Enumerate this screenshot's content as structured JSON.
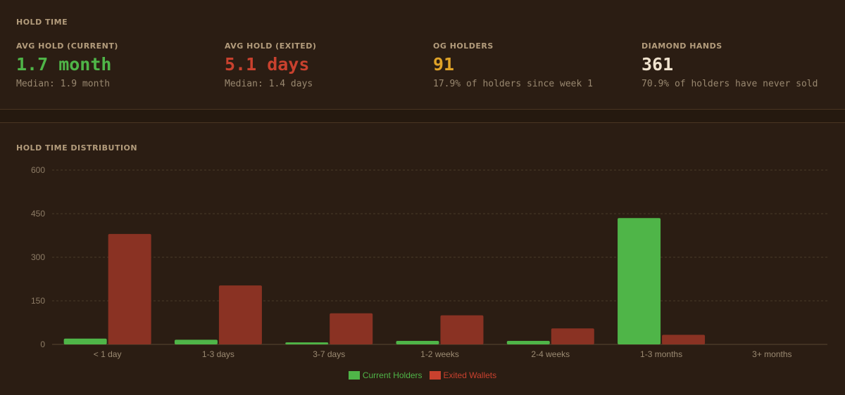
{
  "hold_time": {
    "title": "HOLD TIME",
    "stats": [
      {
        "label": "AVG HOLD (CURRENT)",
        "value": "1.7 month",
        "sub": "Median: 1.9 month",
        "color": "#4fb548"
      },
      {
        "label": "AVG HOLD (EXITED)",
        "value": "5.1 days",
        "sub": "Median: 1.4 days",
        "color": "#c9412e"
      },
      {
        "label": "OG HOLDERS",
        "value": "91",
        "sub": "17.9% of holders since week 1",
        "color": "#e0a328"
      },
      {
        "label": "DIAMOND HANDS",
        "value": "361",
        "sub": "70.9% of holders have never sold",
        "color": "#efe2ce"
      }
    ]
  },
  "distribution": {
    "title": "HOLD TIME DISTRIBUTION"
  },
  "colors": {
    "current": "#4fb548",
    "exited": "#8a3223",
    "exited_legend": "#c9412e",
    "grid": "#4a3a2a",
    "background": "#2b1d13"
  },
  "chart_data": {
    "type": "bar",
    "title": "HOLD TIME DISTRIBUTION",
    "categories": [
      "< 1 day",
      "1-3 days",
      "3-7 days",
      "1-2 weeks",
      "2-4 weeks",
      "1-3 months",
      "3+ months"
    ],
    "series": [
      {
        "name": "Current Holders",
        "values": [
          20,
          16,
          7,
          12,
          12,
          435,
          0
        ]
      },
      {
        "name": "Exited Wallets",
        "values": [
          380,
          203,
          107,
          100,
          55,
          33,
          0
        ]
      }
    ],
    "ylim": [
      0,
      600
    ],
    "yticks": [
      0,
      150,
      300,
      450,
      600
    ],
    "grid": true,
    "legend": "bottom-center"
  }
}
